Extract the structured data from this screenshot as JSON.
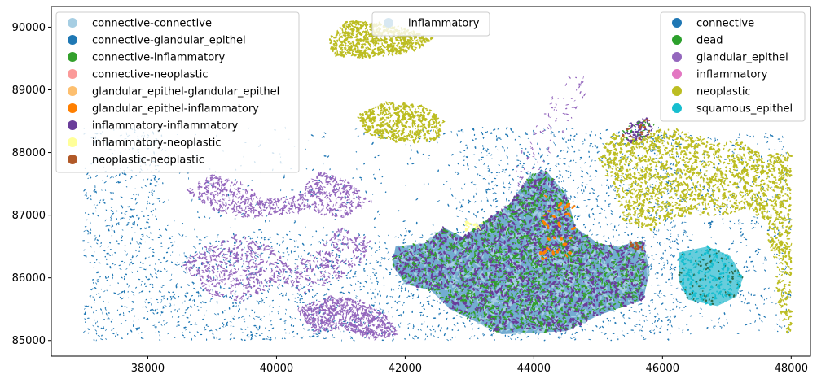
{
  "chart_data": {
    "type": "scatter",
    "title": "",
    "xlabel": "",
    "ylabel": "",
    "xlim": [
      36500,
      48300
    ],
    "ylim": [
      84750,
      90330
    ],
    "x_ticks": [
      38000,
      40000,
      42000,
      44000,
      46000,
      48000
    ],
    "y_ticks": [
      85000,
      86000,
      87000,
      88000,
      89000,
      90000
    ],
    "x_tick_labels": [
      "38000",
      "40000",
      "42000",
      "44000",
      "46000",
      "48000"
    ],
    "y_tick_labels": [
      "85000",
      "86000",
      "87000",
      "88000",
      "89000",
      "90000"
    ],
    "grid": false,
    "legends": [
      {
        "placement": "upper-left",
        "entries": [
          {
            "label": "connective-connective",
            "color": "#a6cee3"
          },
          {
            "label": "connective-glandular_epithel",
            "color": "#1f78b4"
          },
          {
            "label": "connective-inflammatory",
            "color": "#33a02c"
          },
          {
            "label": "connective-neoplastic",
            "color": "#fb9a99"
          },
          {
            "label": "glandular_epithel-glandular_epithel",
            "color": "#fdbf6f"
          },
          {
            "label": "glandular_epithel-inflammatory",
            "color": "#ff7f00"
          },
          {
            "label": "inflammatory-inflammatory",
            "color": "#6a3d9a"
          },
          {
            "label": "inflammatory-neoplastic",
            "color": "#ffff99"
          },
          {
            "label": "neoplastic-neoplastic",
            "color": "#b15928"
          }
        ]
      },
      {
        "placement": "upper-center",
        "entries": [
          {
            "label": "inflammatory",
            "color": "#d8e8f2"
          }
        ]
      },
      {
        "placement": "upper-right",
        "entries": [
          {
            "label": "connective",
            "color": "#1f77b4"
          },
          {
            "label": "dead",
            "color": "#2ca02c"
          },
          {
            "label": "glandular_epithel",
            "color": "#9467bd"
          },
          {
            "label": "inflammatory",
            "color": "#e377c2"
          },
          {
            "label": "neoplastic",
            "color": "#bcbd22"
          },
          {
            "label": "squamous_epithel",
            "color": "#17becf"
          }
        ]
      }
    ],
    "regions": [
      {
        "class": "connective",
        "color": "#1f77b4",
        "x": [
          37000,
          48000
        ],
        "y": [
          85000,
          88400
        ]
      },
      {
        "class": "glandular_epithel",
        "color": "#9467bd",
        "x": [
          38500,
          43000
        ],
        "y": [
          85000,
          87700
        ]
      },
      {
        "class": "neoplastic",
        "color": "#bcbd22",
        "x": [
          40800,
          42500
        ],
        "y": [
          89500,
          90100
        ]
      },
      {
        "class": "neoplastic",
        "color": "#bcbd22",
        "x": [
          41200,
          42700
        ],
        "y": [
          88200,
          88800
        ]
      },
      {
        "class": "neoplastic",
        "color": "#bcbd22",
        "x": [
          45200,
          48000
        ],
        "y": [
          85100,
          88400
        ]
      },
      {
        "class": "squamous_epithel",
        "color": "#17becf",
        "x": [
          46300,
          47200
        ],
        "y": [
          85600,
          86500
        ]
      },
      {
        "class": "connective-connective",
        "color": "#a6cee3",
        "x": [
          41800,
          45800
        ],
        "y": [
          85100,
          87700
        ]
      },
      {
        "class": "inflammatory-inflammatory",
        "color": "#6a3d9a",
        "x": [
          42000,
          45600
        ],
        "y": [
          85200,
          87700
        ]
      },
      {
        "class": "connective-inflammatory",
        "color": "#33a02c",
        "x": [
          42000,
          45600
        ],
        "y": [
          85100,
          87700
        ]
      },
      {
        "class": "inflammatory-inflammatory",
        "color": "#6a3d9a",
        "x": [
          45400,
          45900
        ],
        "y": [
          88100,
          88700
        ]
      }
    ]
  }
}
